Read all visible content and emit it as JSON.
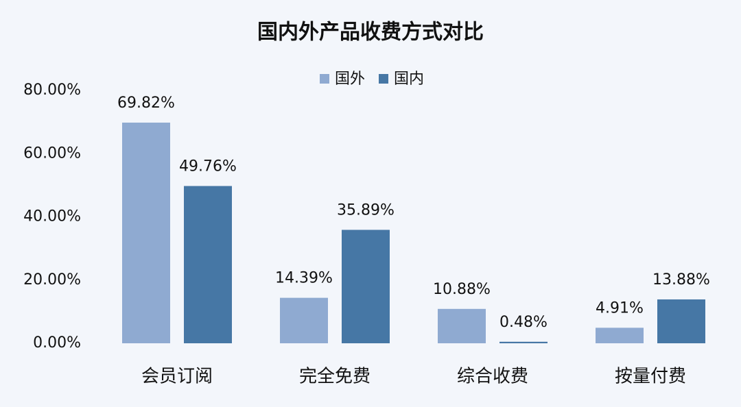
{
  "chart_data": {
    "type": "bar",
    "title": "国内外产品收费方式对比",
    "categories": [
      "会员订阅",
      "完全免费",
      "综合收费",
      "按量付费"
    ],
    "series": [
      {
        "name": "国外",
        "color": "#8faad1",
        "values": [
          69.82,
          14.39,
          10.88,
          4.91
        ],
        "value_labels": [
          "69.82%",
          "14.39%",
          "10.88%",
          "4.91%"
        ]
      },
      {
        "name": "国内",
        "color": "#4677a5",
        "values": [
          49.76,
          35.89,
          0.48,
          13.88
        ],
        "value_labels": [
          "49.76%",
          "35.89%",
          "0.48%",
          "13.88%"
        ]
      }
    ],
    "ylim": [
      0,
      80
    ],
    "yticks": [
      {
        "value": 0,
        "label": "0.00%"
      },
      {
        "value": 20,
        "label": "20.00%"
      },
      {
        "value": 40,
        "label": "40.00%"
      },
      {
        "value": 60,
        "label": "60.00%"
      },
      {
        "value": 80,
        "label": "80.00%"
      }
    ],
    "grid": false,
    "legend": "top"
  }
}
